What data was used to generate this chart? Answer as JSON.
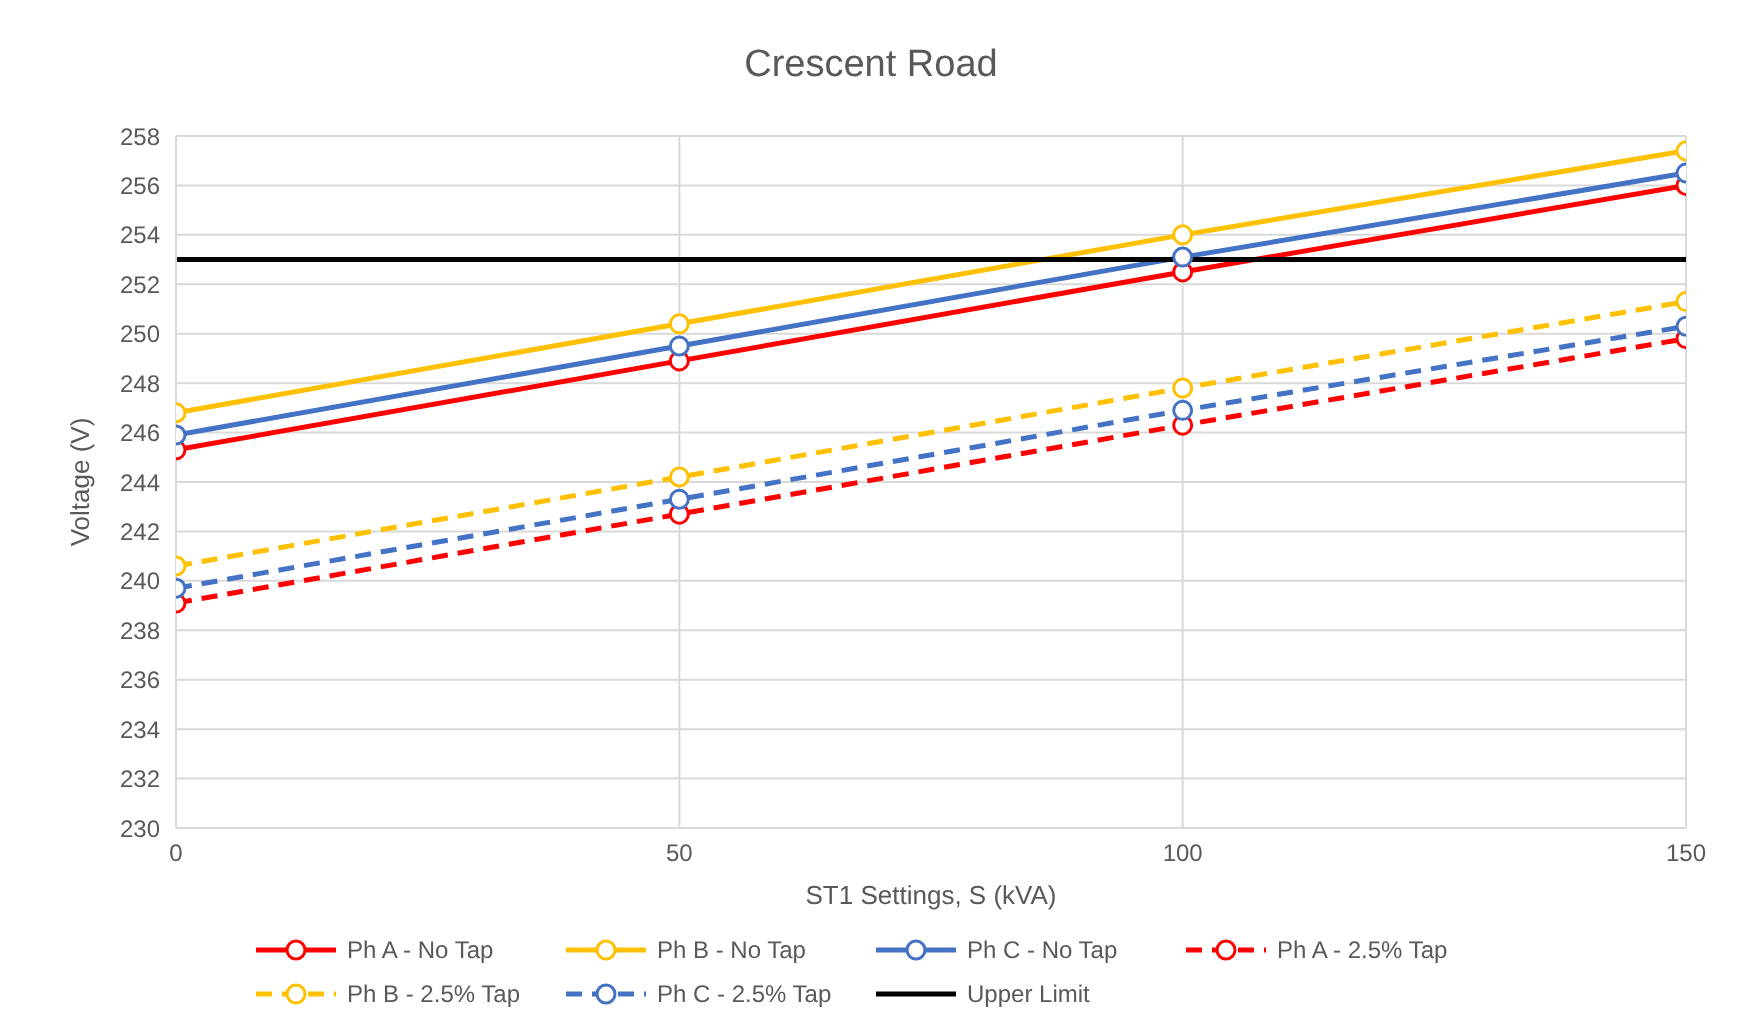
{
  "chart_data": {
    "type": "line",
    "title": "Crescent Road",
    "xlabel": "ST1 Settings, S (kVA)",
    "ylabel": "Voltage (V)",
    "x": [
      0,
      50,
      100,
      150
    ],
    "xlim": [
      0,
      150
    ],
    "xticks": [
      0,
      50,
      100,
      150
    ],
    "ylim": [
      230,
      258
    ],
    "yticks": [
      230,
      232,
      234,
      236,
      238,
      240,
      242,
      244,
      246,
      248,
      250,
      252,
      254,
      256,
      258
    ],
    "grid": true,
    "legend": "bottom",
    "marker": "circle",
    "series": [
      {
        "name": "Ph A - No Tap",
        "color": "#ff0000",
        "values": [
          245.3,
          248.9,
          252.5,
          256.0
        ],
        "line_style": "solid"
      },
      {
        "name": "Ph B - No Tap",
        "color": "#ffc000",
        "values": [
          246.8,
          250.4,
          254.0,
          257.4
        ],
        "line_style": "solid"
      },
      {
        "name": "Ph C - No Tap",
        "color": "#4472c4",
        "values": [
          245.9,
          249.5,
          253.1,
          256.5
        ],
        "line_style": "solid"
      },
      {
        "name": "Ph A - 2.5% Tap",
        "color": "#ff0000",
        "values": [
          239.1,
          242.7,
          246.3,
          249.8
        ],
        "line_style": "dashed"
      },
      {
        "name": "Ph B - 2.5% Tap",
        "color": "#ffc000",
        "values": [
          240.6,
          244.2,
          247.8,
          251.3
        ],
        "line_style": "dashed"
      },
      {
        "name": "Ph C - 2.5% Tap",
        "color": "#4472c4",
        "values": [
          239.7,
          243.3,
          246.9,
          250.3
        ],
        "line_style": "dashed"
      },
      {
        "name": "Upper Limit",
        "color": "#000000",
        "values": [
          253,
          253,
          253,
          253
        ],
        "line_style": "solid",
        "marker": "none"
      }
    ]
  }
}
